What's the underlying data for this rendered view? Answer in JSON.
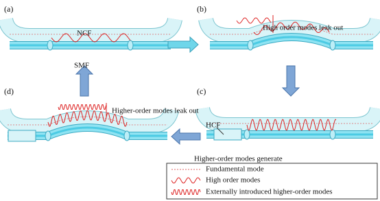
{
  "panels": [
    {
      "label": "(a)",
      "notes": [
        "NCF",
        "SMF"
      ]
    },
    {
      "label": "(b)",
      "notes": [
        "High order modes leak out"
      ]
    },
    {
      "label": "(c)",
      "notes": [
        "HCF",
        "Higher-order modes generate"
      ]
    },
    {
      "label": "(d)",
      "notes": [
        "Higher-order modes leak out"
      ]
    }
  ],
  "legend": [
    "Fundamental mode",
    "High order modes",
    "Externally introduced  higher-order modes"
  ]
}
